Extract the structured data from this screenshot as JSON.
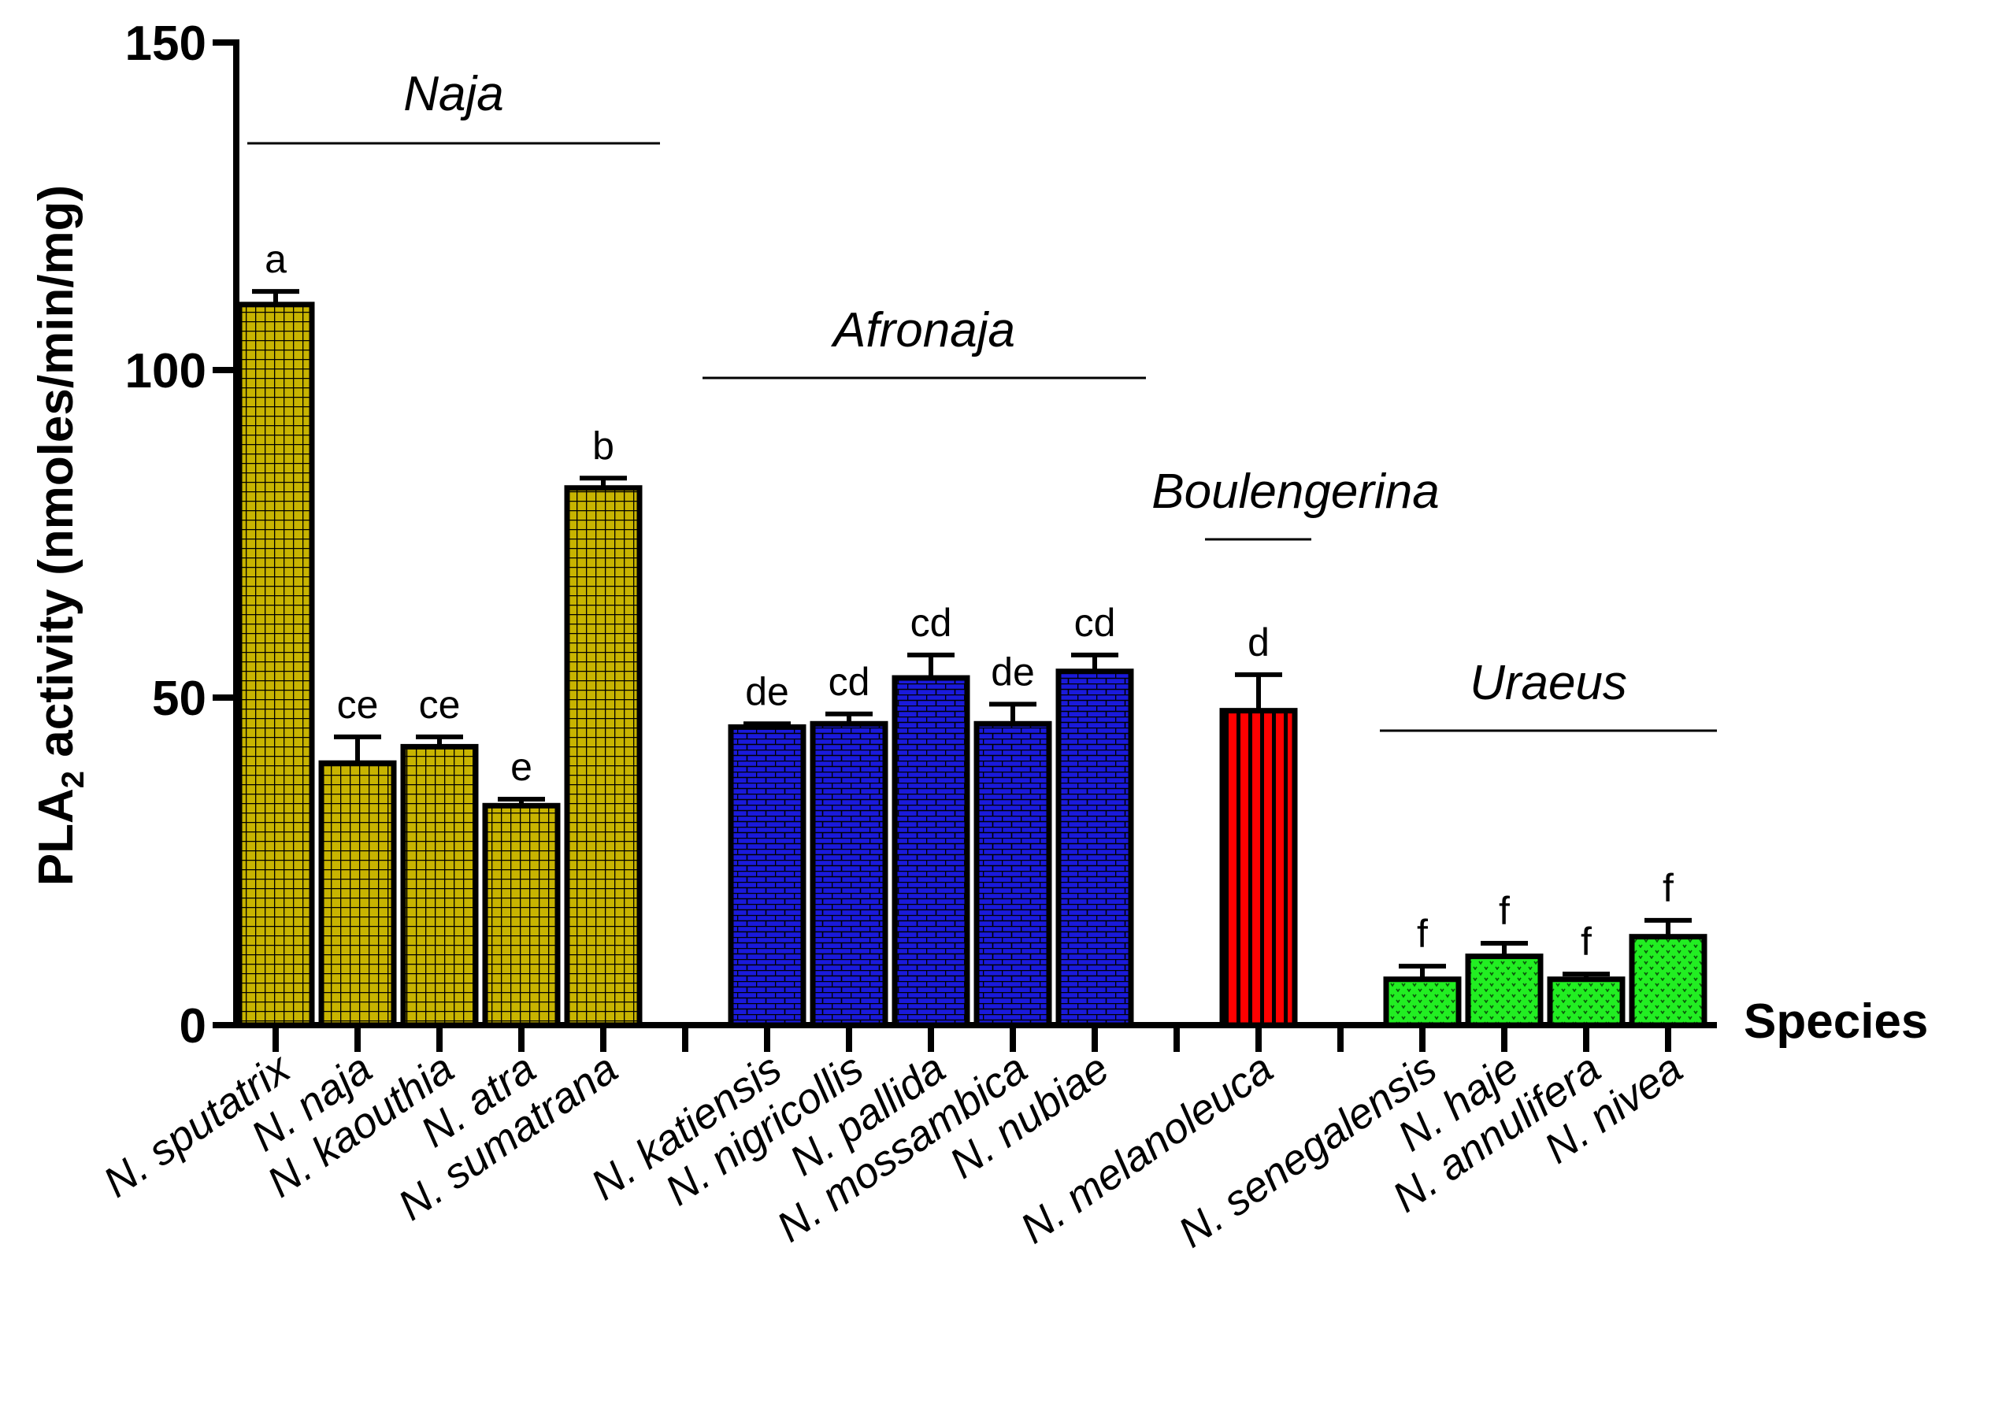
{
  "chart_data": {
    "type": "bar",
    "ylabel_main": "PLA",
    "ylabel_sub": "2",
    "ylabel_rest": " activity (nmoles/min/mg)",
    "xlabel": "Species",
    "ylim": [
      0,
      150
    ],
    "yticks": [
      "0",
      "50",
      "100",
      "150"
    ],
    "groups": [
      {
        "name": "Naja",
        "color": "#c8b400",
        "pattern": "grid",
        "first": 0,
        "last": 4
      },
      {
        "name": "Afronaja",
        "color": "#1a1adc",
        "pattern": "brick",
        "first": 5,
        "last": 9
      },
      {
        "name": "Boulengerina",
        "color": "#ff0000",
        "pattern": "stripes",
        "first": 10,
        "last": 10
      },
      {
        "name": "Uraeus",
        "color": "#22ee22",
        "pattern": "dots",
        "first": 11,
        "last": 14
      }
    ],
    "bars": [
      {
        "label": "N. sputatrix",
        "value": 110,
        "error": 2,
        "letter": "a",
        "group": 0
      },
      {
        "label": "N. naja",
        "value": 40,
        "error": 4,
        "letter": "ce",
        "group": 0
      },
      {
        "label": "N. kaouthia",
        "value": 42.5,
        "error": 1.5,
        "letter": "ce",
        "group": 0
      },
      {
        "label": "N. atra",
        "value": 33.5,
        "error": 1,
        "letter": "e",
        "group": 0
      },
      {
        "label": "N. sumatrana",
        "value": 82,
        "error": 1.5,
        "letter": "b",
        "group": 0
      },
      {
        "label": "N. katiensis",
        "value": 45.5,
        "error": 0.5,
        "letter": "de",
        "group": 1
      },
      {
        "label": "N. nigricollis",
        "value": 46,
        "error": 1.5,
        "letter": "cd",
        "group": 1
      },
      {
        "label": "N. pallida",
        "value": 53,
        "error": 3.5,
        "letter": "cd",
        "group": 1
      },
      {
        "label": "N. mossambica",
        "value": 46,
        "error": 3,
        "letter": "de",
        "group": 1
      },
      {
        "label": "N. nubiae",
        "value": 54,
        "error": 2.5,
        "letter": "cd",
        "group": 1
      },
      {
        "label": "N. melanoleuca",
        "value": 48,
        "error": 5.5,
        "letter": "d",
        "group": 2
      },
      {
        "label": "N. senegalensis",
        "value": 7,
        "error": 2,
        "letter": "f",
        "group": 3
      },
      {
        "label": "N. haje",
        "value": 10.5,
        "error": 2,
        "letter": "f",
        "group": 3
      },
      {
        "label": "N. annulifera",
        "value": 7,
        "error": 0.8,
        "letter": "f",
        "group": 3
      },
      {
        "label": "N. nivea",
        "value": 13.5,
        "error": 2.5,
        "letter": "f",
        "group": 3
      }
    ]
  }
}
